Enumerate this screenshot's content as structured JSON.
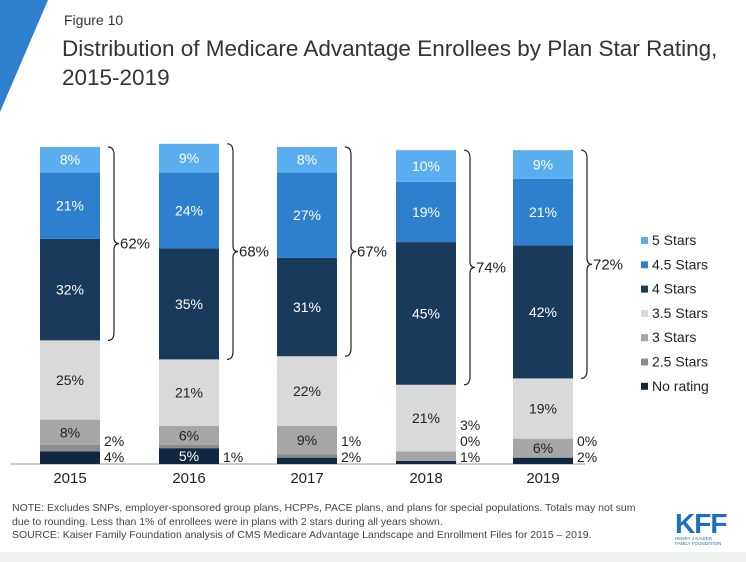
{
  "figure_label": "Figure 10",
  "title": "Distribution of Medicare Advantage Enrollees by Plan Star Rating, 2015-2019",
  "notes": {
    "note": "NOTE: Excludes SNPs, employer-sponsored group plans, HCPPs, PACE plans, and plans for special populations. Totals may not sum due to rounding. Less than 1% of enrollees were in plans with 2 stars during all years shown.",
    "source": "SOURCE: Kaiser Family Foundation analysis of CMS Medicare Advantage Landscape and Enrollment Files for 2015 – 2019."
  },
  "logo": {
    "text": "KFF",
    "subtext": "HENRY J KAISER FAMILY FOUNDATION"
  },
  "chart_data": {
    "type": "bar",
    "stacked": true,
    "categories": [
      "2015",
      "2016",
      "2017",
      "2018",
      "2019"
    ],
    "series": [
      {
        "name": "No rating",
        "color": "#0f2740",
        "values": [
          4,
          5,
          2,
          1,
          2
        ]
      },
      {
        "name": "2.5 Stars",
        "color": "#8c8c8c",
        "values": [
          2,
          1,
          1,
          0,
          0
        ]
      },
      {
        "name": "3 Stars",
        "color": "#a6a6a6",
        "values": [
          8,
          6,
          9,
          3,
          6
        ]
      },
      {
        "name": "3.5 Stars",
        "color": "#d9d9d9",
        "values": [
          25,
          21,
          22,
          21,
          19
        ]
      },
      {
        "name": "4 Stars",
        "color": "#1a3a5c",
        "values": [
          32,
          35,
          31,
          45,
          42
        ]
      },
      {
        "name": "4.5 Stars",
        "color": "#2e7fce",
        "values": [
          21,
          24,
          27,
          19,
          21
        ]
      },
      {
        "name": "5 Stars",
        "color": "#5aaef0",
        "values": [
          8,
          9,
          8,
          10,
          9
        ]
      }
    ],
    "bracket_totals": [
      "62%",
      "68%",
      "67%",
      "74%",
      "72%"
    ],
    "legend_position": "right",
    "ylim": [
      0,
      100
    ],
    "grid": false
  }
}
